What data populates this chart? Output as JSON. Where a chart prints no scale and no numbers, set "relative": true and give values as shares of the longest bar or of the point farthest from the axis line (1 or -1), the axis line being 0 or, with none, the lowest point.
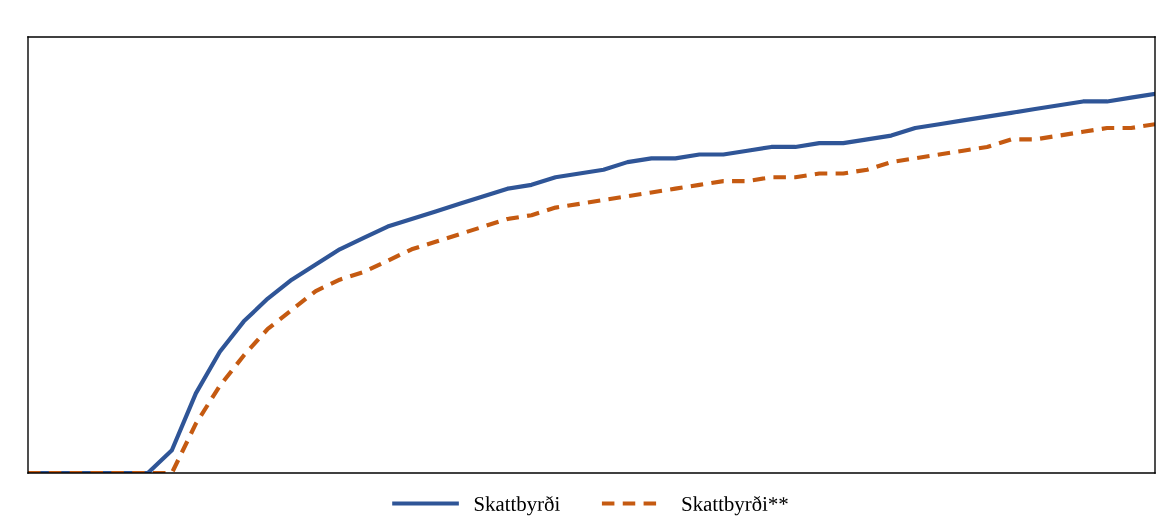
{
  "chart_data": {
    "type": "line",
    "relative": true,
    "legend": "bottom",
    "grid": false,
    "marker": "none",
    "categories": [
      null,
      null,
      null,
      null,
      null,
      null,
      null,
      null,
      null,
      null,
      null,
      null,
      null,
      null,
      null,
      null,
      null,
      null,
      null,
      null,
      null,
      null,
      null,
      null,
      null,
      null,
      null,
      null,
      null,
      null,
      null,
      null,
      null,
      null,
      null,
      null,
      null,
      null,
      null,
      null,
      null,
      null,
      null,
      null,
      null,
      null,
      null,
      null
    ],
    "series": [
      {
        "name": "Skattbyrði",
        "color": "#2f5597",
        "line_style": "solid",
        "values": [
          0,
          0,
          0,
          0,
          0,
          0,
          0.06,
          0.21,
          0.32,
          0.4,
          0.46,
          0.51,
          0.55,
          0.59,
          0.62,
          0.65,
          0.67,
          0.69,
          0.71,
          0.73,
          0.75,
          0.76,
          0.78,
          0.79,
          0.8,
          0.82,
          0.83,
          0.83,
          0.84,
          0.84,
          0.85,
          0.86,
          0.86,
          0.87,
          0.87,
          0.88,
          0.89,
          0.91,
          0.92,
          0.93,
          0.94,
          0.95,
          0.96,
          0.97,
          0.98,
          0.98,
          0.99,
          1
        ]
      },
      {
        "name": "Skattbyrði**",
        "color": "#c55a11",
        "line_style": "dashed",
        "values": [
          0,
          0,
          0,
          0,
          0,
          0,
          0,
          0.13,
          0.23,
          0.31,
          0.38,
          0.43,
          0.48,
          0.51,
          0.53,
          0.56,
          0.59,
          0.61,
          0.63,
          0.65,
          0.67,
          0.68,
          0.7,
          0.71,
          0.72,
          0.73,
          0.74,
          0.75,
          0.76,
          0.77,
          0.77,
          0.78,
          0.78,
          0.79,
          0.79,
          0.8,
          0.82,
          0.83,
          0.84,
          0.85,
          0.86,
          0.88,
          0.88,
          0.89,
          0.9,
          0.91,
          0.91,
          0.92
        ]
      }
    ]
  }
}
